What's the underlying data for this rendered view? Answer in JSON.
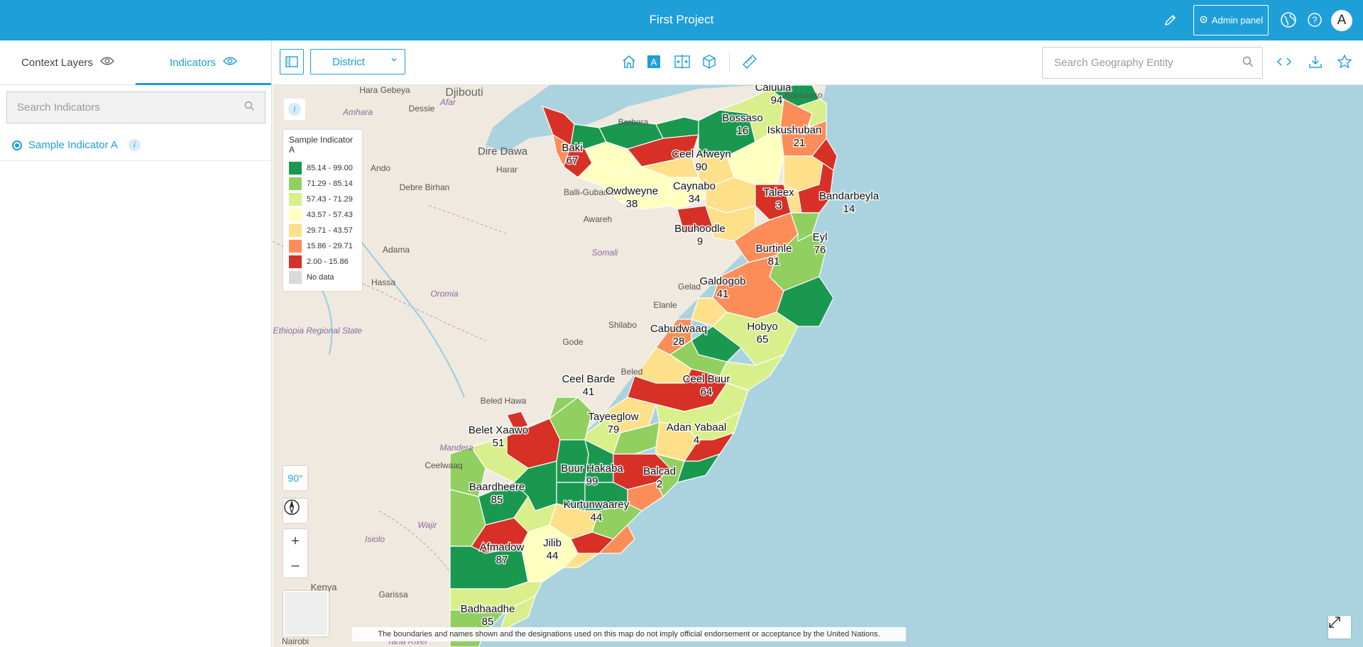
{
  "header": {
    "title": "First Project",
    "admin_label": "Admin panel",
    "avatar_letter": "A"
  },
  "left_panel": {
    "tabs": [
      {
        "label": "Context Layers"
      },
      {
        "label": "Indicators"
      }
    ],
    "search": {
      "placeholder": "Search Indicators"
    },
    "indicators": [
      {
        "label": "Sample Indicator A"
      }
    ]
  },
  "toolbar": {
    "geography_level": "District",
    "geo_search": {
      "placeholder": "Search Geography Entity"
    }
  },
  "map": {
    "legend": {
      "title": "Sample Indicator A",
      "classes": [
        {
          "label": "85.14 - 99.00",
          "color": "#1a9850"
        },
        {
          "label": "71.29 - 85.14",
          "color": "#91cf60"
        },
        {
          "label": "57.43 - 71.29",
          "color": "#d9ef8b"
        },
        {
          "label": "43.57 - 57.43",
          "color": "#ffffbf"
        },
        {
          "label": "29.71 - 43.57",
          "color": "#fee08b"
        },
        {
          "label": "15.86 - 29.71",
          "color": "#fc8d59"
        },
        {
          "label": "2.00 - 15.86",
          "color": "#d73027"
        },
        {
          "label": "No data",
          "color": "#d9d9d9"
        }
      ]
    },
    "pitch_label": "90°",
    "zoom_in": "+",
    "zoom_out": "–",
    "disclaimer": "The boundaries and names shown and the designations used on this map do not imply official endorsement or acceptance by the United Nations.",
    "districts": [
      {
        "name": "Caluula",
        "value": "94"
      },
      {
        "name": "Bossaso",
        "value": "16"
      },
      {
        "name": "Iskushuban",
        "value": "21"
      },
      {
        "name": "Baki",
        "value": "67"
      },
      {
        "name": "Ceel Afweyn",
        "value": "90"
      },
      {
        "name": "Owdweyne",
        "value": "38"
      },
      {
        "name": "Caynabo",
        "value": "34"
      },
      {
        "name": "Taleex",
        "value": "3"
      },
      {
        "name": "Bandarbeyla",
        "value": "14"
      },
      {
        "name": "Buuhoodle",
        "value": "9"
      },
      {
        "name": "Eyl",
        "value": "76"
      },
      {
        "name": "Burtinle",
        "value": "81"
      },
      {
        "name": "Galdogob",
        "value": "41"
      },
      {
        "name": "Hobyo",
        "value": "65"
      },
      {
        "name": "Cabudwaaq",
        "value": "28"
      },
      {
        "name": "Ceel Barde",
        "value": "41"
      },
      {
        "name": "Ceel Buur",
        "value": "64"
      },
      {
        "name": "Tayeeglow",
        "value": "79"
      },
      {
        "name": "Adan Yabaal",
        "value": "4"
      },
      {
        "name": "Belet Xaawo",
        "value": "51"
      },
      {
        "name": "Buur Hakaba",
        "value": "99"
      },
      {
        "name": "Balcad",
        "value": "2"
      },
      {
        "name": "Baardheere",
        "value": "85"
      },
      {
        "name": "Kurtunwaarey",
        "value": "44"
      },
      {
        "name": "Afmadow",
        "value": "87"
      },
      {
        "name": "Jilib",
        "value": "44"
      },
      {
        "name": "Badhaadhe",
        "value": "85"
      }
    ],
    "basemap_labels": [
      "Djibouti",
      "Hara Gebeya",
      "Dessie",
      "Afar",
      "Amhara",
      "Berbera",
      "Boosaaso",
      "Dire Dawa",
      "Harar",
      "Balli-Gubadle",
      "Awareh",
      "Adama",
      "Somali",
      "Oromia",
      "Elanle",
      "Gelad",
      "Shilabo",
      "Gode",
      "Beled Hawa",
      "Mandera",
      "Ceelwaaq",
      "Wajir",
      "Isiolo",
      "Garissa",
      "Nairobi",
      "Kenya",
      "Tana River",
      "South Ethiopia Regional State",
      "Beled",
      "Ando",
      "Debre Birhan",
      "Hassa"
    ]
  }
}
